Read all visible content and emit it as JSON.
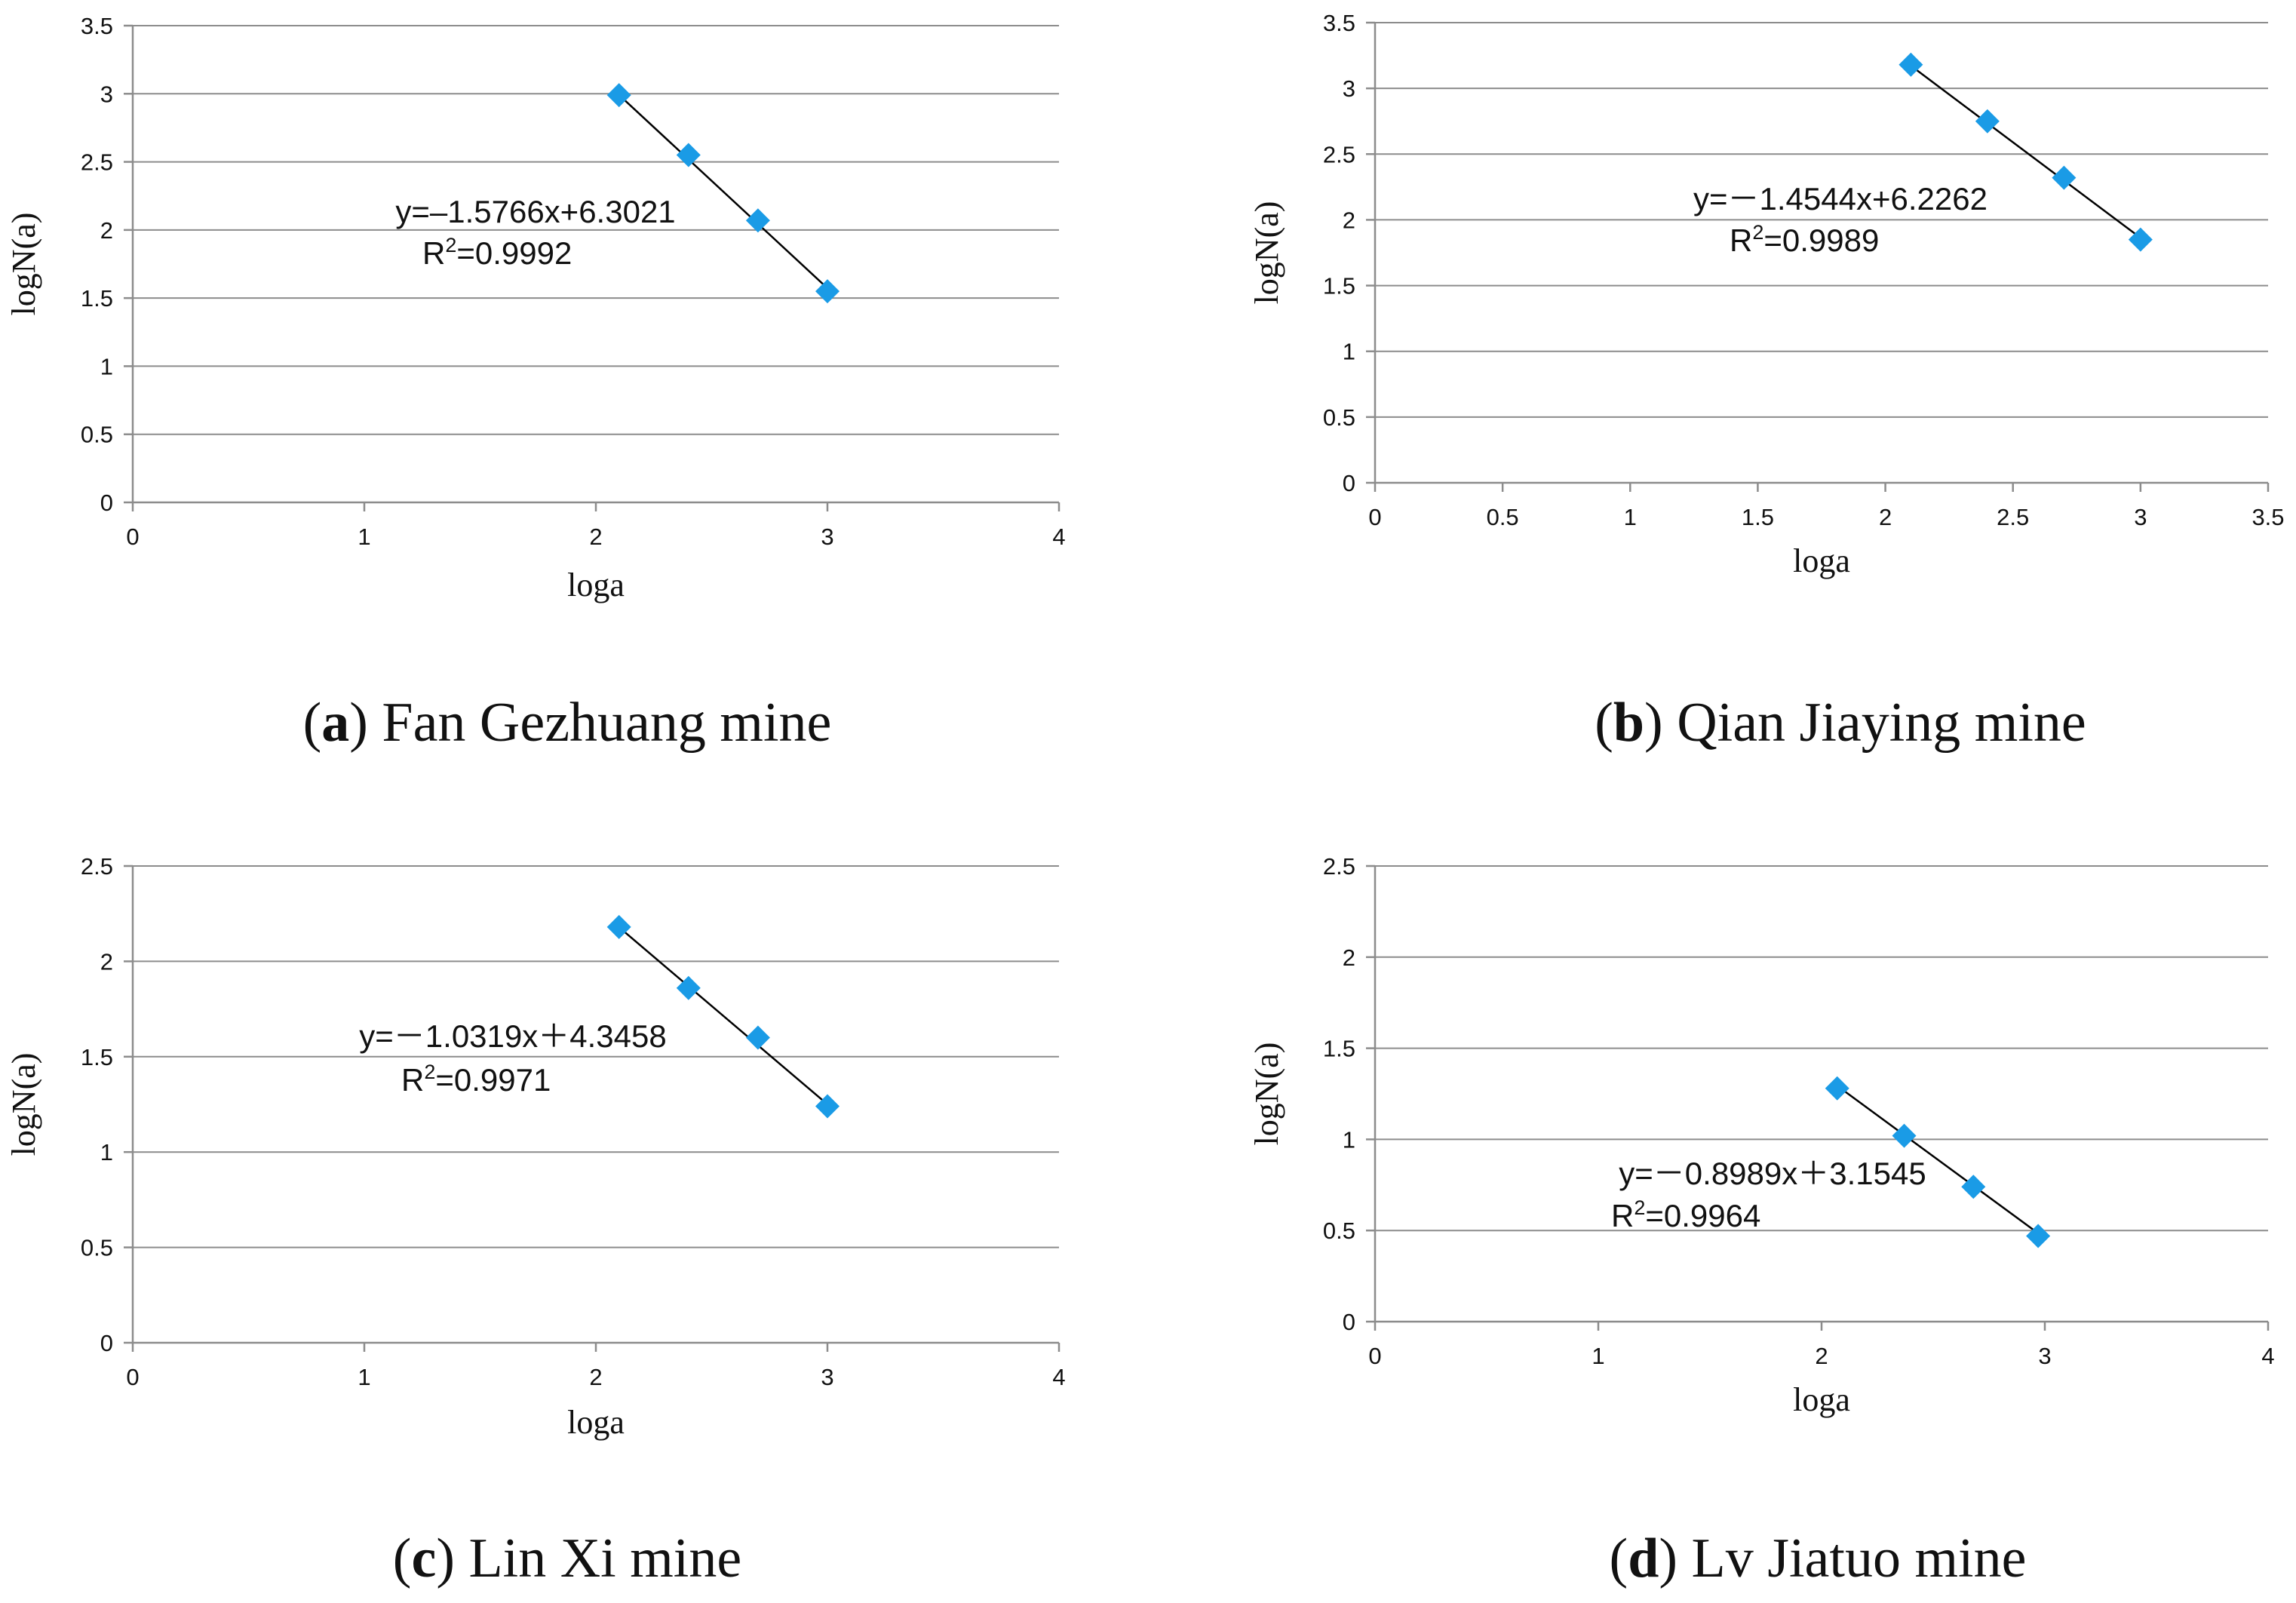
{
  "chart_data": [
    {
      "type": "scatter",
      "caption_letter": "a",
      "caption_text": " Fan Gezhuang mine",
      "xlabel": "loga",
      "ylabel": "logN(a)",
      "xlim": [
        0,
        4
      ],
      "ylim": [
        0,
        3.5
      ],
      "xticks": [
        "0",
        "1",
        "2",
        "3",
        "4"
      ],
      "yticks": [
        "0",
        "0.5",
        "1",
        "1.5",
        "2",
        "2.5",
        "3",
        "3.5"
      ],
      "x": [
        2.1,
        2.4,
        2.7,
        3.0
      ],
      "y": [
        2.99,
        2.55,
        2.07,
        1.55
      ],
      "fit": {
        "slope": -1.5766,
        "intercept": 6.3021
      },
      "equation": "y=–1.5766x+6.3021",
      "r2_value": "=0.9992",
      "grid": true
    },
    {
      "type": "scatter",
      "caption_letter": "b",
      "caption_text": " Qian Jiaying mine",
      "xlabel": "loga",
      "ylabel": "logN(a)",
      "xlim": [
        0,
        3.5
      ],
      "ylim": [
        0,
        3.5
      ],
      "xticks": [
        "0",
        "0.5",
        "1",
        "1.5",
        "2",
        "2.5",
        "3",
        "3.5"
      ],
      "yticks": [
        "0",
        "0.5",
        "1",
        "1.5",
        "2",
        "2.5",
        "3",
        "3.5"
      ],
      "x": [
        2.1,
        2.4,
        2.7,
        3.0
      ],
      "y": [
        3.18,
        2.75,
        2.32,
        1.85
      ],
      "fit": {
        "slope": -1.4544,
        "intercept": 6.2262
      },
      "equation": "y=－1.4544x+6.2262",
      "r2_value": "=0.9989",
      "grid": true
    },
    {
      "type": "scatter",
      "caption_letter": "c",
      "caption_text": " Lin Xi mine",
      "xlabel": "loga",
      "ylabel": "logN(a)",
      "xlim": [
        0,
        4
      ],
      "ylim": [
        0,
        2.5
      ],
      "xticks": [
        "0",
        "1",
        "2",
        "3",
        "4"
      ],
      "yticks": [
        "0",
        "0.5",
        "1",
        "1.5",
        "2",
        "2.5"
      ],
      "x": [
        2.1,
        2.4,
        2.7,
        3.0
      ],
      "y": [
        2.18,
        1.86,
        1.6,
        1.24
      ],
      "fit": {
        "slope": -1.0319,
        "intercept": 4.3458
      },
      "equation": "y=－1.0319x＋4.3458",
      "r2_value": "=0.9971",
      "grid": true
    },
    {
      "type": "scatter",
      "caption_letter": "d",
      "caption_text": " Lv Jiatuo mine",
      "xlabel": "loga",
      "ylabel": "logN(a)",
      "xlim": [
        0,
        4
      ],
      "ylim": [
        0,
        2.5
      ],
      "xticks": [
        "0",
        "1",
        "2",
        "3",
        "4"
      ],
      "yticks": [
        "0",
        "0.5",
        "1",
        "1.5",
        "2",
        "2.5"
      ],
      "x": [
        2.07,
        2.37,
        2.68,
        2.97
      ],
      "y": [
        1.28,
        1.02,
        0.74,
        0.47
      ],
      "fit": {
        "slope": -0.8989,
        "intercept": 3.1545
      },
      "equation": "y=－0.8989x＋3.1545",
      "r2_value": "=0.9964",
      "grid": true
    }
  ],
  "r2_label": "R",
  "r2_superscript": "2"
}
